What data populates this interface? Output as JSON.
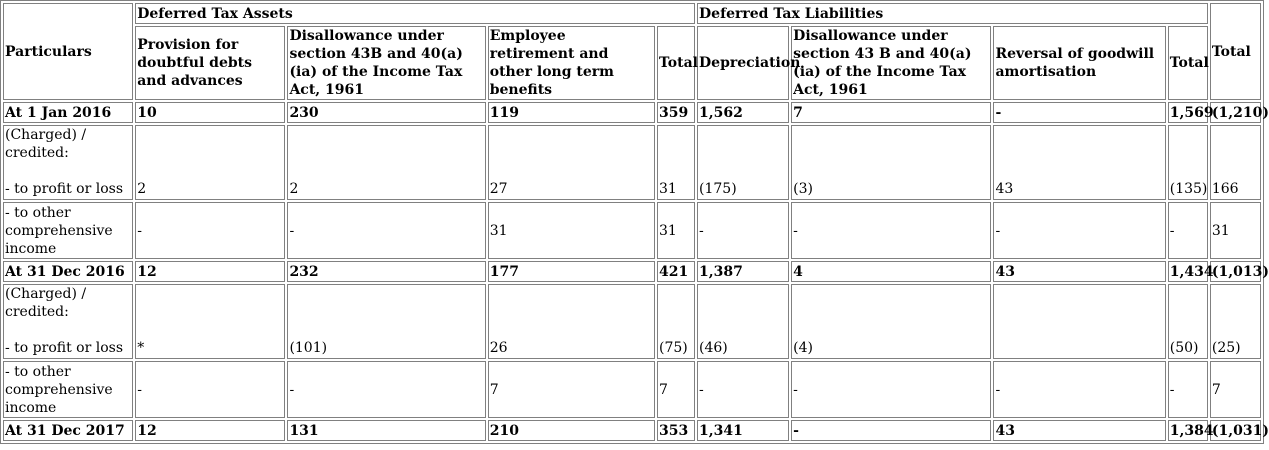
{
  "header": {
    "particulars": "Particulars",
    "dta_group": "Deferred Tax Assets",
    "dtl_group": "Deferred Tax Liabilities",
    "total": "Total",
    "dta_cols": [
      "Provision for doubtful debts and advances",
      "Disallowance under section 43B and 40(a)(ia) of the Income Tax Act, 1961",
      "Employee retirement and other long term benefits",
      "Total"
    ],
    "dtl_cols": [
      "Depreciation",
      "Disallowance under section 43 B and 40(a)(ia) of the Income Tax Act, 1961",
      "Reversal of goodwill amortisation",
      "Total"
    ]
  },
  "rows": {
    "open_2016": {
      "label": "At 1 Jan 2016",
      "values": [
        "10",
        "230",
        "119",
        "359",
        "1,562",
        "7",
        "-",
        "1,569",
        "(1,210)"
      ]
    },
    "pl_2016": {
      "label_head": "(Charged) / credited:",
      "label": "- to profit or loss",
      "values": [
        "2",
        "2",
        "27",
        "31",
        "(175)",
        "(3)",
        "43",
        "(135)",
        "166"
      ]
    },
    "oci_2016": {
      "label": "- to other comprehensive income",
      "values": [
        "-",
        "-",
        "31",
        "31",
        "-",
        "-",
        "-",
        "-",
        "31"
      ]
    },
    "close_2016": {
      "label": "At 31 Dec 2016",
      "values": [
        "12",
        "232",
        "177",
        "421",
        "1,387",
        "4",
        "43",
        "1,434",
        "(1,013)"
      ]
    },
    "pl_2017": {
      "label_head": "(Charged) / credited:",
      "label": "- to profit or loss",
      "values": [
        "*",
        "(101)",
        "26",
        "(75)",
        "(46)",
        "(4)",
        "",
        "(50)",
        "(25)"
      ]
    },
    "oci_2017": {
      "label": "- to other comprehensive income",
      "values": [
        "-",
        "-",
        "7",
        "7",
        "-",
        "-",
        "-",
        "-",
        "7"
      ]
    },
    "close_2017": {
      "label": "At 31 Dec 2017",
      "values": [
        "12",
        "131",
        "210",
        "353",
        "1,341",
        "-",
        "43",
        "1,384",
        "(1,031)"
      ]
    }
  }
}
